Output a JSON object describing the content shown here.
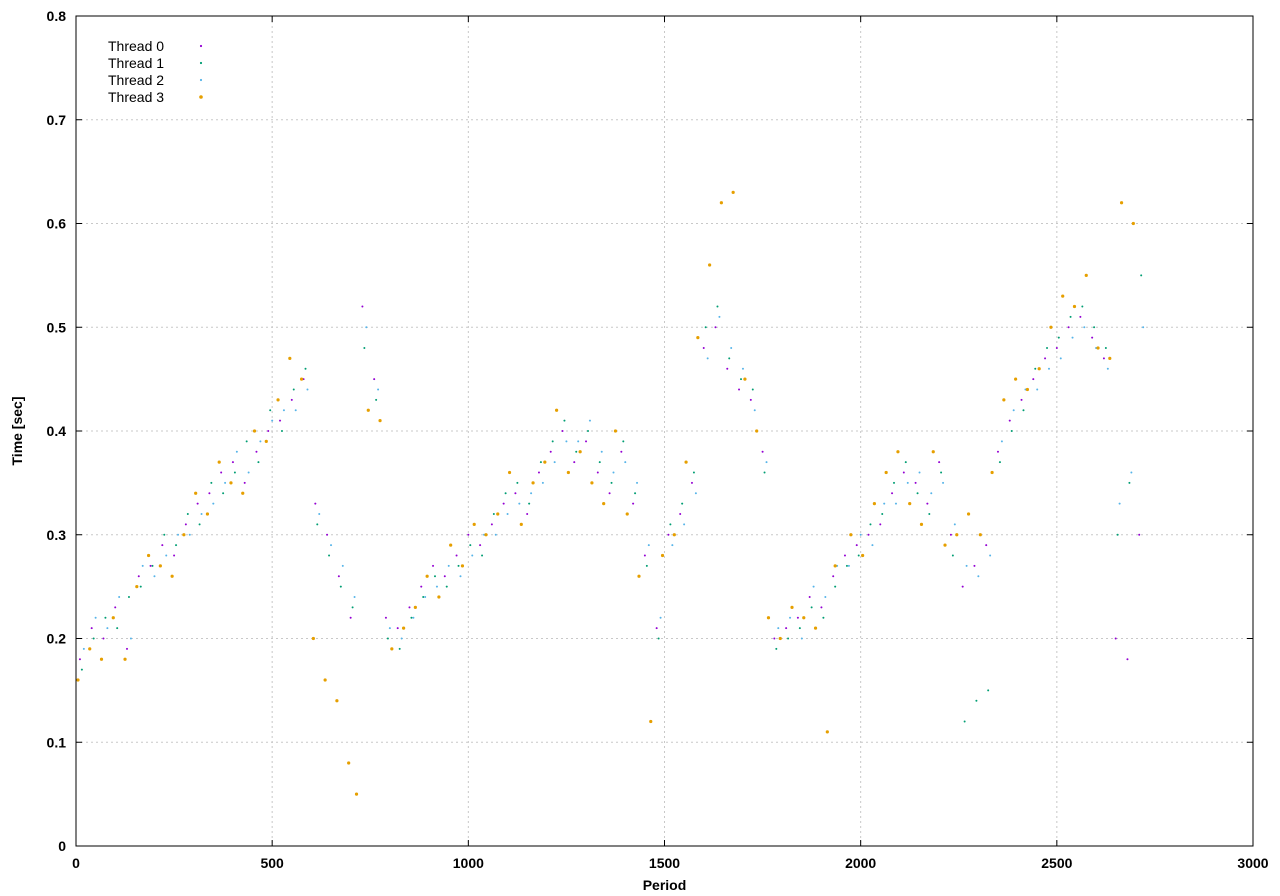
{
  "chart_data": {
    "type": "scatter",
    "title": "",
    "xlabel": "Period",
    "ylabel": "Time [sec]",
    "xlim": [
      0,
      3000
    ],
    "ylim": [
      0,
      0.8
    ],
    "x_ticks": [
      0,
      500,
      1000,
      1500,
      2000,
      2500,
      3000
    ],
    "y_ticks": [
      0,
      0.1,
      0.2,
      0.3,
      0.4,
      0.5,
      0.6,
      0.7,
      0.8
    ],
    "grid": true,
    "legend_position": "top-left",
    "series": [
      {
        "name": "Thread 0",
        "color": "#9400d3",
        "x": [
          10,
          40,
          70,
          100,
          130,
          160,
          190,
          220,
          250,
          280,
          310,
          340,
          370,
          400,
          430,
          460,
          490,
          520,
          550,
          580,
          610,
          640,
          670,
          700,
          730,
          760,
          790,
          820,
          850,
          880,
          910,
          940,
          970,
          1000,
          1030,
          1060,
          1090,
          1120,
          1150,
          1180,
          1210,
          1240,
          1270,
          1300,
          1330,
          1360,
          1390,
          1420,
          1450,
          1480,
          1510,
          1540,
          1570,
          1600,
          1630,
          1660,
          1690,
          1720,
          1750,
          1780,
          1810,
          1840,
          1870,
          1900,
          1930,
          1960,
          1990,
          2020,
          2050,
          2080,
          2110,
          2140,
          2170,
          2200,
          2230,
          2260,
          2290,
          2320,
          2350,
          2380,
          2410,
          2440,
          2470,
          2500,
          2530,
          2560,
          2590,
          2620,
          2650,
          2680,
          2710
        ],
        "y": [
          0.18,
          0.21,
          0.2,
          0.23,
          0.19,
          0.26,
          0.27,
          0.29,
          0.28,
          0.31,
          0.33,
          0.34,
          0.36,
          0.37,
          0.35,
          0.38,
          0.4,
          0.41,
          0.43,
          0.45,
          0.33,
          0.3,
          0.26,
          0.22,
          0.52,
          0.45,
          0.22,
          0.21,
          0.23,
          0.25,
          0.27,
          0.26,
          0.28,
          0.3,
          0.29,
          0.31,
          0.33,
          0.34,
          0.32,
          0.36,
          0.38,
          0.4,
          0.37,
          0.39,
          0.36,
          0.34,
          0.38,
          0.33,
          0.28,
          0.21,
          0.3,
          0.32,
          0.35,
          0.48,
          0.5,
          0.46,
          0.44,
          0.43,
          0.38,
          0.2,
          0.21,
          0.22,
          0.24,
          0.23,
          0.26,
          0.28,
          0.29,
          0.3,
          0.31,
          0.34,
          0.36,
          0.35,
          0.33,
          0.37,
          0.3,
          0.25,
          0.27,
          0.29,
          0.38,
          0.41,
          0.43,
          0.45,
          0.47,
          0.48,
          0.5,
          0.51,
          0.49,
          0.47,
          0.2,
          0.18,
          0.3
        ]
      },
      {
        "name": "Thread 1",
        "color": "#009e73",
        "x": [
          15,
          45,
          75,
          105,
          135,
          165,
          195,
          225,
          255,
          285,
          315,
          345,
          375,
          405,
          435,
          465,
          495,
          525,
          555,
          585,
          615,
          645,
          675,
          705,
          735,
          765,
          795,
          825,
          855,
          885,
          915,
          945,
          975,
          1005,
          1035,
          1065,
          1095,
          1125,
          1155,
          1185,
          1215,
          1245,
          1275,
          1305,
          1335,
          1365,
          1395,
          1425,
          1455,
          1485,
          1515,
          1545,
          1575,
          1605,
          1635,
          1665,
          1695,
          1725,
          1755,
          1785,
          1815,
          1845,
          1875,
          1905,
          1935,
          1965,
          1995,
          2025,
          2055,
          2085,
          2115,
          2145,
          2175,
          2205,
          2235,
          2265,
          2295,
          2325,
          2355,
          2385,
          2415,
          2445,
          2475,
          2505,
          2535,
          2565,
          2595,
          2625,
          2655,
          2685,
          2715
        ],
        "y": [
          0.17,
          0.2,
          0.22,
          0.21,
          0.24,
          0.25,
          0.27,
          0.3,
          0.29,
          0.32,
          0.31,
          0.35,
          0.34,
          0.36,
          0.39,
          0.37,
          0.42,
          0.4,
          0.44,
          0.46,
          0.31,
          0.28,
          0.25,
          0.23,
          0.48,
          0.43,
          0.2,
          0.19,
          0.22,
          0.24,
          0.26,
          0.25,
          0.27,
          0.29,
          0.28,
          0.32,
          0.34,
          0.35,
          0.33,
          0.37,
          0.39,
          0.41,
          0.38,
          0.4,
          0.37,
          0.35,
          0.39,
          0.34,
          0.27,
          0.2,
          0.31,
          0.33,
          0.36,
          0.5,
          0.52,
          0.47,
          0.45,
          0.44,
          0.36,
          0.19,
          0.2,
          0.21,
          0.23,
          0.22,
          0.25,
          0.27,
          0.28,
          0.31,
          0.32,
          0.35,
          0.37,
          0.34,
          0.32,
          0.36,
          0.28,
          0.12,
          0.14,
          0.15,
          0.37,
          0.4,
          0.42,
          0.46,
          0.48,
          0.49,
          0.51,
          0.52,
          0.5,
          0.48,
          0.3,
          0.35,
          0.55
        ]
      },
      {
        "name": "Thread 2",
        "color": "#56b4e9",
        "x": [
          20,
          50,
          80,
          110,
          140,
          170,
          200,
          230,
          260,
          290,
          320,
          350,
          380,
          410,
          440,
          470,
          500,
          530,
          560,
          590,
          620,
          650,
          680,
          710,
          740,
          770,
          800,
          830,
          860,
          890,
          920,
          950,
          980,
          1010,
          1040,
          1070,
          1100,
          1130,
          1160,
          1190,
          1220,
          1250,
          1280,
          1310,
          1340,
          1370,
          1400,
          1430,
          1460,
          1490,
          1520,
          1550,
          1580,
          1610,
          1640,
          1670,
          1700,
          1730,
          1760,
          1790,
          1820,
          1850,
          1880,
          1910,
          1940,
          1970,
          2000,
          2030,
          2060,
          2090,
          2120,
          2150,
          2180,
          2210,
          2240,
          2270,
          2300,
          2330,
          2360,
          2390,
          2420,
          2450,
          2480,
          2510,
          2540,
          2570,
          2600,
          2630,
          2660,
          2690,
          2720
        ],
        "y": [
          0.19,
          0.22,
          0.21,
          0.24,
          0.2,
          0.27,
          0.26,
          0.28,
          0.3,
          0.3,
          0.32,
          0.33,
          0.35,
          0.38,
          0.36,
          0.39,
          0.41,
          0.42,
          0.42,
          0.44,
          0.32,
          0.29,
          0.27,
          0.24,
          0.5,
          0.44,
          0.21,
          0.2,
          0.22,
          0.24,
          0.25,
          0.27,
          0.26,
          0.28,
          0.3,
          0.3,
          0.32,
          0.33,
          0.34,
          0.35,
          0.37,
          0.39,
          0.39,
          0.41,
          0.38,
          0.36,
          0.37,
          0.35,
          0.29,
          0.22,
          0.29,
          0.31,
          0.34,
          0.47,
          0.51,
          0.48,
          0.46,
          0.42,
          0.37,
          0.21,
          0.22,
          0.2,
          0.25,
          0.24,
          0.27,
          0.27,
          0.3,
          0.29,
          0.33,
          0.33,
          0.35,
          0.36,
          0.34,
          0.35,
          0.31,
          0.27,
          0.26,
          0.28,
          0.39,
          0.42,
          0.44,
          0.44,
          0.46,
          0.47,
          0.49,
          0.5,
          0.48,
          0.46,
          0.33,
          0.36,
          0.5
        ]
      },
      {
        "name": "Thread 3",
        "color": "#e69f00",
        "x": [
          5,
          35,
          65,
          95,
          125,
          155,
          185,
          215,
          245,
          275,
          305,
          335,
          365,
          395,
          425,
          455,
          485,
          515,
          545,
          575,
          605,
          635,
          665,
          695,
          715,
          745,
          775,
          805,
          835,
          865,
          895,
          925,
          955,
          985,
          1015,
          1045,
          1075,
          1105,
          1135,
          1165,
          1195,
          1225,
          1255,
          1285,
          1315,
          1345,
          1375,
          1405,
          1435,
          1465,
          1495,
          1525,
          1555,
          1585,
          1615,
          1645,
          1675,
          1705,
          1735,
          1765,
          1795,
          1825,
          1855,
          1885,
          1915,
          1935,
          1975,
          2005,
          2035,
          2065,
          2095,
          2125,
          2155,
          2185,
          2215,
          2245,
          2275,
          2305,
          2335,
          2365,
          2395,
          2425,
          2455,
          2485,
          2515,
          2545,
          2575,
          2605,
          2635,
          2665,
          2695
        ],
        "y": [
          0.16,
          0.19,
          0.18,
          0.22,
          0.18,
          0.25,
          0.28,
          0.27,
          0.26,
          0.3,
          0.34,
          0.32,
          0.37,
          0.35,
          0.34,
          0.4,
          0.39,
          0.43,
          0.47,
          0.45,
          0.2,
          0.16,
          0.14,
          0.08,
          0.05,
          0.42,
          0.41,
          0.19,
          0.21,
          0.23,
          0.26,
          0.24,
          0.29,
          0.27,
          0.31,
          0.3,
          0.32,
          0.36,
          0.31,
          0.35,
          0.37,
          0.42,
          0.36,
          0.38,
          0.35,
          0.33,
          0.4,
          0.32,
          0.26,
          0.12,
          0.28,
          0.3,
          0.37,
          0.49,
          0.56,
          0.62,
          0.63,
          0.45,
          0.4,
          0.22,
          0.2,
          0.23,
          0.22,
          0.21,
          0.11,
          0.27,
          0.3,
          0.28,
          0.33,
          0.36,
          0.38,
          0.33,
          0.31,
          0.38,
          0.29,
          0.3,
          0.32,
          0.3,
          0.36,
          0.43,
          0.45,
          0.44,
          0.46,
          0.5,
          0.53,
          0.52,
          0.55,
          0.48,
          0.47,
          0.62,
          0.6
        ]
      }
    ]
  }
}
